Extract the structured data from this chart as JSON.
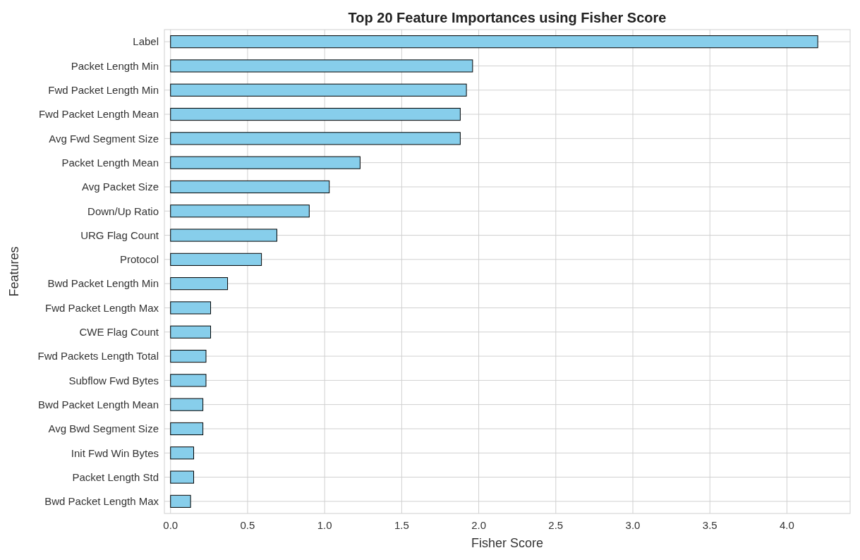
{
  "chart_data": {
    "type": "bar",
    "orientation": "horizontal",
    "title": "Top 20 Feature Importances using Fisher Score",
    "xlabel": "Fisher Score",
    "ylabel": "Features",
    "categories": [
      "Label",
      "Packet Length Min",
      "Fwd Packet Length Min",
      "Fwd Packet Length Mean",
      "Avg Fwd Segment Size",
      "Packet Length Mean",
      "Avg Packet Size",
      "Down/Up Ratio",
      "URG Flag Count",
      "Protocol",
      "Bwd Packet Length Min",
      "Fwd Packet Length Max",
      "CWE Flag Count",
      "Fwd Packets Length Total",
      "Subflow Fwd Bytes",
      "Bwd Packet Length Mean",
      "Avg Bwd Segment Size",
      "Init Fwd Win Bytes",
      "Packet Length Std",
      "Bwd Packet Length Max"
    ],
    "values": [
      4.2,
      1.96,
      1.92,
      1.88,
      1.88,
      1.23,
      1.03,
      0.9,
      0.69,
      0.59,
      0.37,
      0.26,
      0.26,
      0.23,
      0.23,
      0.21,
      0.21,
      0.15,
      0.15,
      0.13
    ],
    "color": "#87ceeb",
    "xlim": [
      -0.04,
      4.41
    ],
    "xticks": [
      {
        "value": 0,
        "label": "0.0"
      },
      {
        "value": 0.5,
        "label": "0.5"
      },
      {
        "value": 1,
        "label": "1.0"
      },
      {
        "value": 1.5,
        "label": "1.5"
      },
      {
        "value": 2,
        "label": "2.0"
      },
      {
        "value": 2.5,
        "label": "2.5"
      },
      {
        "value": 3,
        "label": "3.0"
      },
      {
        "value": 3.5,
        "label": "3.5"
      },
      {
        "value": 4,
        "label": "4.0"
      }
    ],
    "grid": true
  }
}
